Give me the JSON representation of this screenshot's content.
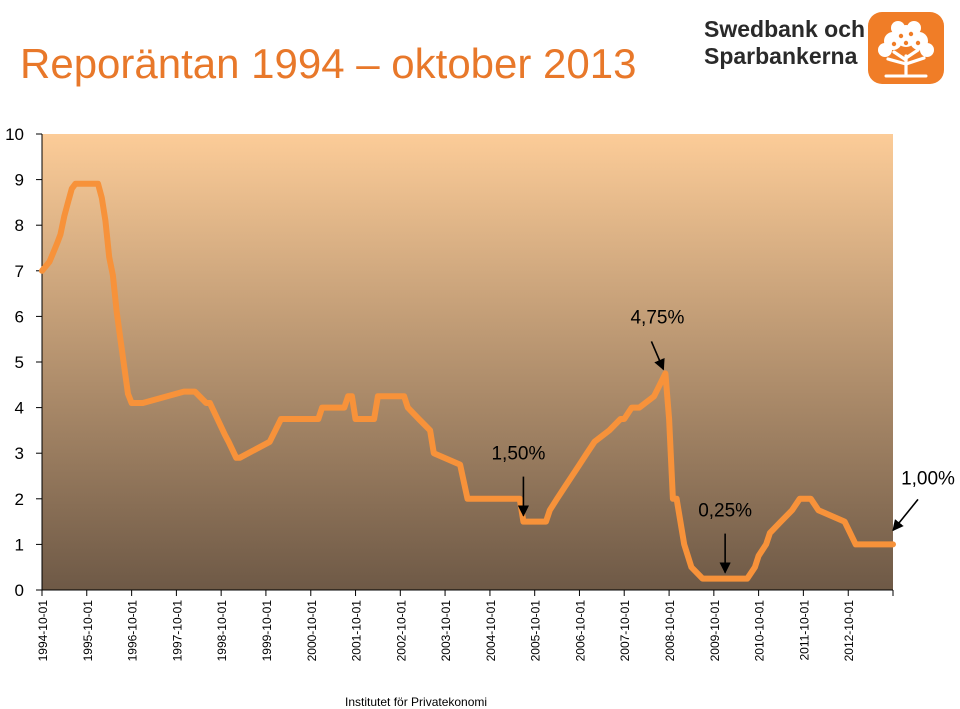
{
  "header": {
    "title": "Reporäntan 1994 – oktober 2013"
  },
  "logo": {
    "line1": "Swedbank och",
    "line2": "Sparbankerna",
    "icon": "oak-tree-icon",
    "color": "#f07d27"
  },
  "footer": {
    "source": "Institutet för Privatekonomi"
  },
  "colors": {
    "line": "#f7923a",
    "plot_top": "#fccc98",
    "plot_bottom": "#6e5946"
  },
  "chart_data": {
    "type": "line",
    "title": "Reporäntan 1994 – oktober 2013",
    "xlabel": "",
    "ylabel": "",
    "ylim": [
      0,
      10
    ],
    "yticks": [
      "0",
      "1",
      "2",
      "3",
      "4",
      "5",
      "6",
      "7",
      "8",
      "9",
      "10"
    ],
    "xtick_labels": [
      "1994-10-01",
      "1995-10-01",
      "1996-10-01",
      "1997-10-01",
      "1998-10-01",
      "1999-10-01",
      "2000-10-01",
      "2001-10-01",
      "2002-10-01",
      "2003-10-01",
      "2004-10-01",
      "2005-10-01",
      "2006-10-01",
      "2007-10-01",
      "2008-10-01",
      "2009-10-01",
      "2010-10-01",
      "2011-10-01",
      "2012-10-01"
    ],
    "xlim": [
      "1994-10-01",
      "2013-10-01"
    ],
    "grid": false,
    "legend": "none",
    "series": [
      {
        "x": [
          "1994-10-01",
          "1994-12-01",
          "1995-01-01",
          "1995-02-01",
          "1995-03-01",
          "1995-04-01",
          "1995-05-01",
          "1995-06-01",
          "1995-07-01",
          "1996-01-01",
          "1996-02-01",
          "1996-03-01",
          "1996-04-01",
          "1996-05-01",
          "1996-06-01",
          "1996-07-01",
          "1996-08-01",
          "1996-09-01",
          "1996-10-01",
          "1996-11-01",
          "1996-12-01",
          "1997-01-01",
          "1997-12-01",
          "1998-03-01",
          "1998-06-01",
          "1998-07-01",
          "1998-11-01",
          "1998-12-01",
          "1999-02-01",
          "1999-03-01",
          "1999-11-01",
          "2000-02-01",
          "2000-03-01",
          "2000-12-01",
          "2001-01-01",
          "2001-07-01",
          "2001-08-01",
          "2001-09-01",
          "2001-10-01",
          "2002-03-01",
          "2002-04-01",
          "2002-11-01",
          "2002-12-01",
          "2003-03-01",
          "2003-06-01",
          "2003-07-01",
          "2004-02-01",
          "2004-04-01",
          "2005-06-01",
          "2005-07-01",
          "2006-01-01",
          "2006-02-01",
          "2006-04-01",
          "2006-06-01",
          "2006-08-01",
          "2006-10-01",
          "2006-12-01",
          "2007-02-01",
          "2007-06-01",
          "2007-09-01",
          "2007-10-01",
          "2007-12-01",
          "2008-02-01",
          "2008-06-01",
          "2008-09-01",
          "2008-10-01",
          "2008-11-01",
          "2008-12-01",
          "2009-02-01",
          "2009-04-01",
          "2009-07-01",
          "2010-07-01",
          "2010-09-01",
          "2010-10-01",
          "2010-12-01",
          "2011-01-01",
          "2011-04-01",
          "2011-07-01",
          "2011-09-01",
          "2011-12-01",
          "2012-02-01",
          "2012-09-01",
          "2012-12-01",
          "2013-10-01"
        ],
        "values": [
          7.0,
          7.2,
          7.4,
          7.6,
          7.8,
          8.2,
          8.5,
          8.8,
          8.91,
          8.91,
          8.6,
          8.1,
          7.3,
          6.9,
          6.1,
          5.5,
          4.9,
          4.3,
          4.1,
          4.1,
          4.1,
          4.1,
          4.35,
          4.35,
          4.1,
          4.1,
          3.4,
          3.25,
          2.9,
          2.9,
          3.25,
          3.75,
          3.75,
          3.75,
          4.0,
          4.0,
          4.25,
          4.25,
          3.75,
          3.75,
          4.25,
          4.25,
          4.0,
          3.75,
          3.5,
          3.0,
          2.75,
          2.0,
          2.0,
          1.5,
          1.5,
          1.75,
          2.0,
          2.25,
          2.5,
          2.75,
          3.0,
          3.25,
          3.5,
          3.75,
          3.75,
          4.0,
          4.0,
          4.25,
          4.75,
          3.75,
          2.0,
          2.0,
          1.0,
          0.5,
          0.25,
          0.25,
          0.5,
          0.75,
          1.0,
          1.25,
          1.5,
          1.75,
          2.0,
          2.0,
          1.75,
          1.5,
          1.0,
          1.0
        ]
      }
    ],
    "annotations": [
      {
        "text": "4,75%",
        "x": "2008-09-01",
        "y": 4.75
      },
      {
        "text": "1,50%",
        "x": "2005-07-01",
        "y": 1.5
      },
      {
        "text": "0,25%",
        "x": "2010-01-01",
        "y": 0.25
      },
      {
        "text": "1,00%",
        "x": "2013-10-01",
        "y": 1.0
      }
    ]
  }
}
